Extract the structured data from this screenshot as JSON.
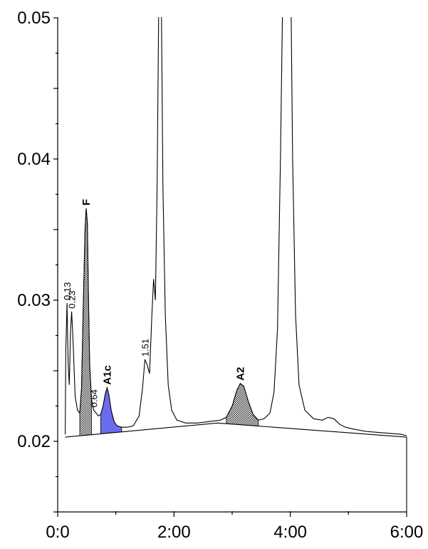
{
  "chart_data": {
    "type": "line",
    "title": "",
    "xlabel": "",
    "ylabel": "",
    "xlim": [
      0,
      6
    ],
    "ylim": [
      0.015,
      0.05
    ],
    "x_ticks": [
      {
        "value": 0,
        "label": "0:0"
      },
      {
        "value": 2,
        "label": "2:00"
      },
      {
        "value": 4,
        "label": "4:00"
      },
      {
        "value": 6,
        "label": "6:00"
      }
    ],
    "y_ticks": [
      {
        "value": 0.02,
        "label": "0.02"
      },
      {
        "value": 0.03,
        "label": "0.03"
      },
      {
        "value": 0.04,
        "label": "0.04"
      },
      {
        "value": 0.05,
        "label": "0.05"
      }
    ],
    "grid": false,
    "colors": {
      "trace": "#000000",
      "a1c_fill": "#6b6bf0",
      "hatched_fill": "#555555"
    },
    "trace": [
      [
        0.13,
        0.0205
      ],
      [
        0.14,
        0.0265
      ],
      [
        0.16,
        0.0298
      ],
      [
        0.18,
        0.0255
      ],
      [
        0.2,
        0.024
      ],
      [
        0.22,
        0.0278
      ],
      [
        0.24,
        0.0292
      ],
      [
        0.27,
        0.0265
      ],
      [
        0.3,
        0.0232
      ],
      [
        0.34,
        0.0222
      ],
      [
        0.38,
        0.022
      ],
      [
        0.41,
        0.0238
      ],
      [
        0.44,
        0.0295
      ],
      [
        0.47,
        0.035
      ],
      [
        0.49,
        0.0365
      ],
      [
        0.51,
        0.0355
      ],
      [
        0.53,
        0.03
      ],
      [
        0.55,
        0.0255
      ],
      [
        0.58,
        0.023
      ],
      [
        0.62,
        0.0222
      ],
      [
        0.66,
        0.022
      ],
      [
        0.7,
        0.0218
      ],
      [
        0.74,
        0.0219
      ],
      [
        0.78,
        0.0225
      ],
      [
        0.82,
        0.0234
      ],
      [
        0.85,
        0.0238
      ],
      [
        0.88,
        0.0233
      ],
      [
        0.92,
        0.0222
      ],
      [
        0.97,
        0.0214
      ],
      [
        1.02,
        0.0211
      ],
      [
        1.1,
        0.021
      ],
      [
        1.2,
        0.021
      ],
      [
        1.3,
        0.0211
      ],
      [
        1.4,
        0.0218
      ],
      [
        1.46,
        0.0238
      ],
      [
        1.5,
        0.0258
      ],
      [
        1.54,
        0.0254
      ],
      [
        1.58,
        0.0248
      ],
      [
        1.62,
        0.029
      ],
      [
        1.65,
        0.0315
      ],
      [
        1.68,
        0.03
      ],
      [
        1.71,
        0.038
      ],
      [
        1.74,
        0.052
      ],
      [
        1.78,
        0.052
      ],
      [
        1.81,
        0.038
      ],
      [
        1.85,
        0.029
      ],
      [
        1.9,
        0.024
      ],
      [
        1.96,
        0.0222
      ],
      [
        2.05,
        0.0215
      ],
      [
        2.2,
        0.0213
      ],
      [
        2.4,
        0.0213
      ],
      [
        2.6,
        0.0214
      ],
      [
        2.8,
        0.0215
      ],
      [
        2.9,
        0.0217
      ],
      [
        3.0,
        0.0225
      ],
      [
        3.08,
        0.0236
      ],
      [
        3.14,
        0.0241
      ],
      [
        3.2,
        0.0239
      ],
      [
        3.28,
        0.0228
      ],
      [
        3.36,
        0.0219
      ],
      [
        3.45,
        0.0215
      ],
      [
        3.55,
        0.0216
      ],
      [
        3.65,
        0.022
      ],
      [
        3.72,
        0.0235
      ],
      [
        3.78,
        0.028
      ],
      [
        3.83,
        0.04
      ],
      [
        3.87,
        0.052
      ],
      [
        4.01,
        0.052
      ],
      [
        4.04,
        0.04
      ],
      [
        4.09,
        0.029
      ],
      [
        4.15,
        0.024
      ],
      [
        4.25,
        0.0222
      ],
      [
        4.4,
        0.0216
      ],
      [
        4.55,
        0.0215
      ],
      [
        4.65,
        0.0217
      ],
      [
        4.75,
        0.0216
      ],
      [
        4.85,
        0.0212
      ],
      [
        4.95,
        0.021
      ],
      [
        5.05,
        0.0209
      ],
      [
        5.3,
        0.0207
      ],
      [
        5.6,
        0.0206
      ],
      [
        5.9,
        0.0205
      ],
      [
        6.0,
        0.0204
      ]
    ],
    "baseline": [
      [
        0.13,
        0.0203
      ],
      [
        2.75,
        0.0213
      ],
      [
        6.0,
        0.0203
      ]
    ],
    "peaks": [
      {
        "label": "0.13",
        "x": 0.16,
        "y": 0.0298,
        "style": "normal"
      },
      {
        "label": "0.23",
        "x": 0.24,
        "y": 0.0292,
        "style": "normal"
      },
      {
        "label": "F",
        "x": 0.49,
        "y": 0.0365,
        "style": "bold",
        "shaded": "hatched",
        "from": 0.38,
        "to": 0.58
      },
      {
        "label": "0.64",
        "x": 0.62,
        "y": 0.0222,
        "style": "normal"
      },
      {
        "label": "A1c",
        "x": 0.85,
        "y": 0.0238,
        "style": "bold",
        "shaded": "blue",
        "from": 0.74,
        "to": 1.1
      },
      {
        "label": "1.51",
        "x": 1.5,
        "y": 0.0258,
        "style": "normal"
      },
      {
        "label": "A2",
        "x": 3.14,
        "y": 0.0241,
        "style": "bold",
        "shaded": "hatched",
        "from": 2.9,
        "to": 3.45
      }
    ]
  }
}
